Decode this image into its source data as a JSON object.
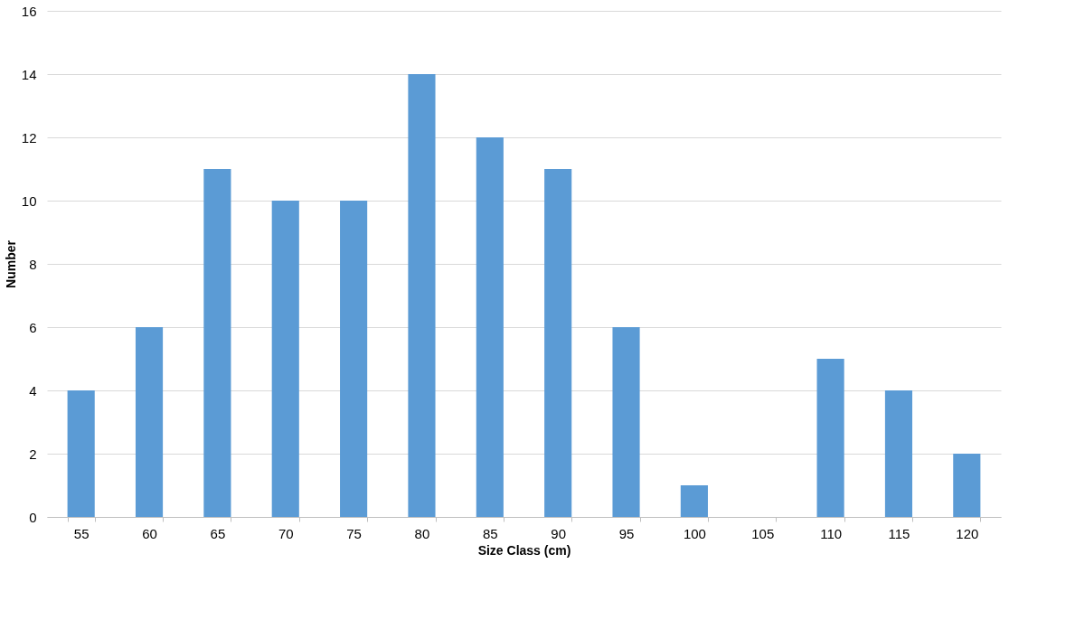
{
  "chart_data": {
    "type": "bar",
    "xlabel": "Size Class (cm)",
    "ylabel": "Number",
    "categories": [
      "55",
      "60",
      "65",
      "70",
      "75",
      "80",
      "85",
      "90",
      "95",
      "100",
      "105",
      "110",
      "115",
      "120"
    ],
    "values": [
      4,
      6,
      11,
      10,
      10,
      14,
      12,
      11,
      6,
      1,
      0,
      5,
      4,
      2
    ],
    "color": "#5b9bd5",
    "ylim": [
      0,
      16
    ],
    "yticks": [
      0,
      2,
      4,
      6,
      8,
      10,
      12,
      14,
      16
    ],
    "grid": "y"
  }
}
